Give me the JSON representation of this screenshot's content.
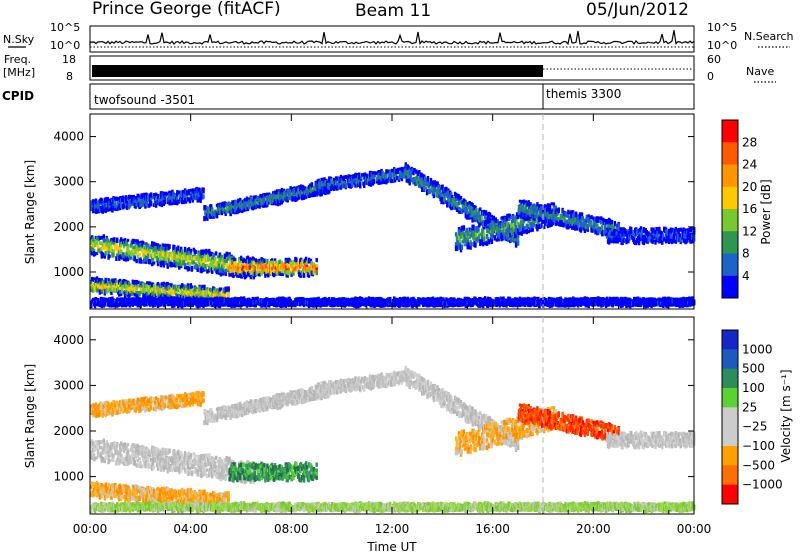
{
  "header": {
    "station": "Prince George (fitACF)",
    "beam": "Beam 11",
    "date": "05/Jun/2012"
  },
  "top_panels": {
    "nsky_label": "N.Sky",
    "nsky_ticks": [
      "10^5",
      "10^0"
    ],
    "nsearch_label": "N.Search",
    "nsearch_ticks": [
      "10^5",
      "10^0"
    ],
    "freq_label_1": "Freq.",
    "freq_label_2": "[MHz]",
    "freq_ticks": [
      "18",
      "8"
    ],
    "nave_label": "Nave",
    "nave_ticks": [
      "60",
      "0"
    ],
    "cpid_label": "CPID",
    "cpid_segments": [
      {
        "name": "twofsound -3501",
        "start_hour": 0,
        "end_hour": 18
      },
      {
        "name": "themis 3300",
        "start_hour": 18,
        "end_hour": 24
      }
    ]
  },
  "chart_data": [
    {
      "type": "heatmap",
      "name": "power",
      "ylabel": "Slant Range [km]",
      "xlim": [
        0,
        24
      ],
      "ylim": [
        180,
        4500
      ],
      "yticks": [
        "1000",
        "2000",
        "3000",
        "4000"
      ],
      "colorbar_label": "Power [dB]",
      "colorbar_ticks": [
        "28",
        "24",
        "20",
        "16",
        "12",
        "8",
        "4"
      ],
      "colorbar_colors": [
        "#ff0000",
        "#ff5a00",
        "#ff9600",
        "#ffc800",
        "#78c832",
        "#2d9650",
        "#1e64c8",
        "#0000ff"
      ],
      "cmap": "power"
    },
    {
      "type": "heatmap",
      "name": "velocity",
      "ylabel": "Slant Range [km]",
      "xlabel": "Time UT",
      "xlim": [
        0,
        24
      ],
      "ylim": [
        180,
        4500
      ],
      "yticks": [
        "1000",
        "2000",
        "3000",
        "4000"
      ],
      "xticks": [
        "00:00",
        "04:00",
        "08:00",
        "12:00",
        "16:00",
        "20:00",
        "00:00"
      ],
      "colorbar_label": "Velocity [m s⁻¹]",
      "colorbar_ticks": [
        "1000",
        "500",
        "100",
        "25",
        "−25",
        "−100",
        "−500",
        "−1000"
      ],
      "colorbar_colors": [
        "#1428c8",
        "#1e5abe",
        "#2d8c5a",
        "#5ad232",
        "#cccccc",
        "#cccccc",
        "#ffa000",
        "#ff6e00",
        "#ff0000"
      ],
      "cmap": "velocity"
    }
  ],
  "colors": {
    "gray_scatter": "#bebebe",
    "ground_scatter_green": "#8cd23c"
  }
}
